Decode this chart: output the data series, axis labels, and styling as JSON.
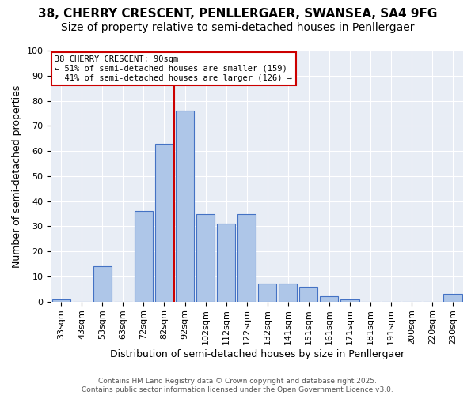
{
  "title_line1": "38, CHERRY CRESCENT, PENLLERGAER, SWANSEA, SA4 9FG",
  "title_line2": "Size of property relative to semi-detached houses in Penllergaer",
  "xlabel": "Distribution of semi-detached houses by size in Penllergaer",
  "ylabel": "Number of semi-detached properties",
  "categories": [
    "33sqm",
    "43sqm",
    "53sqm",
    "63sqm",
    "72sqm",
    "82sqm",
    "92sqm",
    "102sqm",
    "112sqm",
    "122sqm",
    "132sqm",
    "141sqm",
    "151sqm",
    "161sqm",
    "171sqm",
    "181sqm",
    "191sqm",
    "200sqm",
    "220sqm",
    "230sqm"
  ],
  "values": [
    1,
    0,
    14,
    0,
    36,
    63,
    76,
    35,
    31,
    35,
    7,
    7,
    6,
    2,
    1,
    0,
    0,
    0,
    0,
    3
  ],
  "bar_color": "#aec6e8",
  "bar_edge_color": "#4472c4",
  "red_line_index": 6,
  "annotation_line1": "38 CHERRY CRESCENT: 90sqm",
  "annotation_line2": "← 51% of semi-detached houses are smaller (159)",
  "annotation_line3": "  41% of semi-detached houses are larger (126) →",
  "annotation_box_color": "#ffffff",
  "annotation_box_edge": "#cc0000",
  "ylim": [
    0,
    100
  ],
  "yticks": [
    0,
    10,
    20,
    30,
    40,
    50,
    60,
    70,
    80,
    90,
    100
  ],
  "bg_color": "#e8edf5",
  "footer": "Contains HM Land Registry data © Crown copyright and database right 2025.\nContains public sector information licensed under the Open Government Licence v3.0.",
  "title_fontsize": 11,
  "subtitle_fontsize": 10,
  "axis_label_fontsize": 9,
  "tick_fontsize": 8,
  "footer_fontsize": 6.5
}
